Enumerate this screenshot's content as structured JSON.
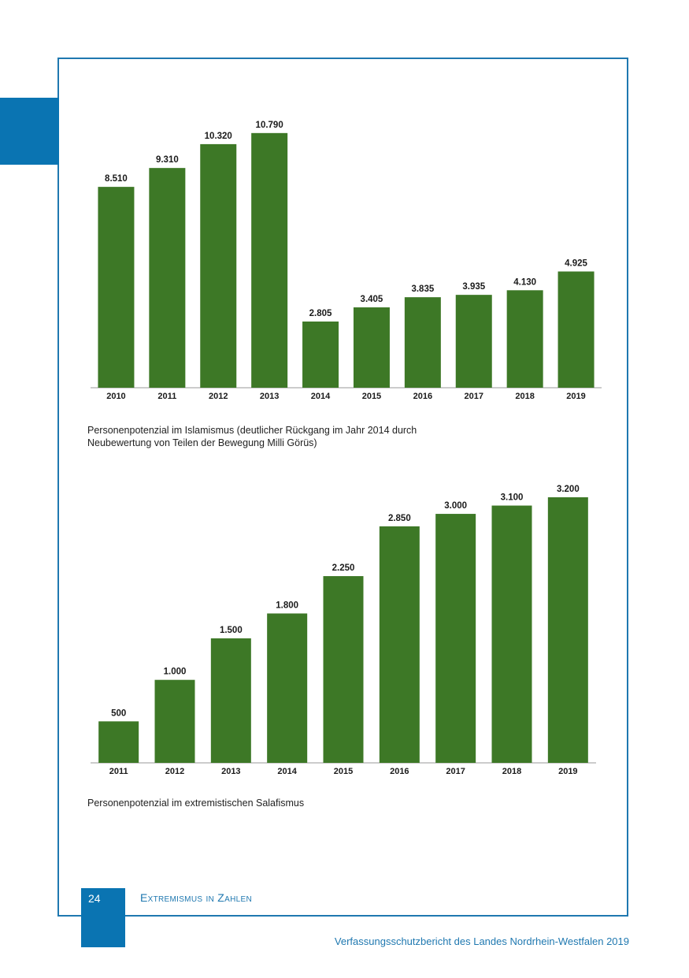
{
  "chart_data": [
    {
      "type": "bar",
      "title": "",
      "xlabel": "",
      "ylabel": "",
      "categories": [
        "2010",
        "2011",
        "2012",
        "2013",
        "2014",
        "2015",
        "2016",
        "2017",
        "2018",
        "2019"
      ],
      "values": [
        8510,
        9310,
        10320,
        10790,
        2805,
        3405,
        3835,
        3935,
        4130,
        4925
      ],
      "labels": [
        "8.510",
        "9.310",
        "10.320",
        "10.790",
        "2.805",
        "3.405",
        "3.835",
        "3.935",
        "4.130",
        "4.925"
      ],
      "ylim": [
        0,
        11000
      ],
      "grid": false,
      "color": "#3d7826",
      "caption_lines": [
        "Personenpotenzial im Islamismus (deutlicher Rückgang im Jahr 2014 durch",
        "Neubewertung von Teilen der Bewegung Milli Görüs)"
      ]
    },
    {
      "type": "bar",
      "title": "",
      "xlabel": "",
      "ylabel": "",
      "categories": [
        "2011",
        "2012",
        "2013",
        "2014",
        "2015",
        "2016",
        "2017",
        "2018",
        "2019"
      ],
      "values": [
        500,
        1000,
        1500,
        1800,
        2250,
        2850,
        3000,
        3100,
        3200
      ],
      "labels": [
        "500",
        "1.000",
        "1.500",
        "1.800",
        "2.250",
        "2.850",
        "3.000",
        "3.100",
        "3.200"
      ],
      "ylim": [
        0,
        3500
      ],
      "grid": false,
      "color": "#3d7826",
      "caption_lines": [
        "Personenpotenzial im extremistischen Salafismus"
      ]
    }
  ],
  "footer": {
    "page_number": "24",
    "section_title": "Extremismus in Zahlen",
    "publication": "Verfassungsschutzbericht des Landes Nordrhein-Westfalen 2019"
  },
  "colors": {
    "accent": "#0a74b2",
    "bar": "#3d7826",
    "frame": "#1f78b0"
  }
}
